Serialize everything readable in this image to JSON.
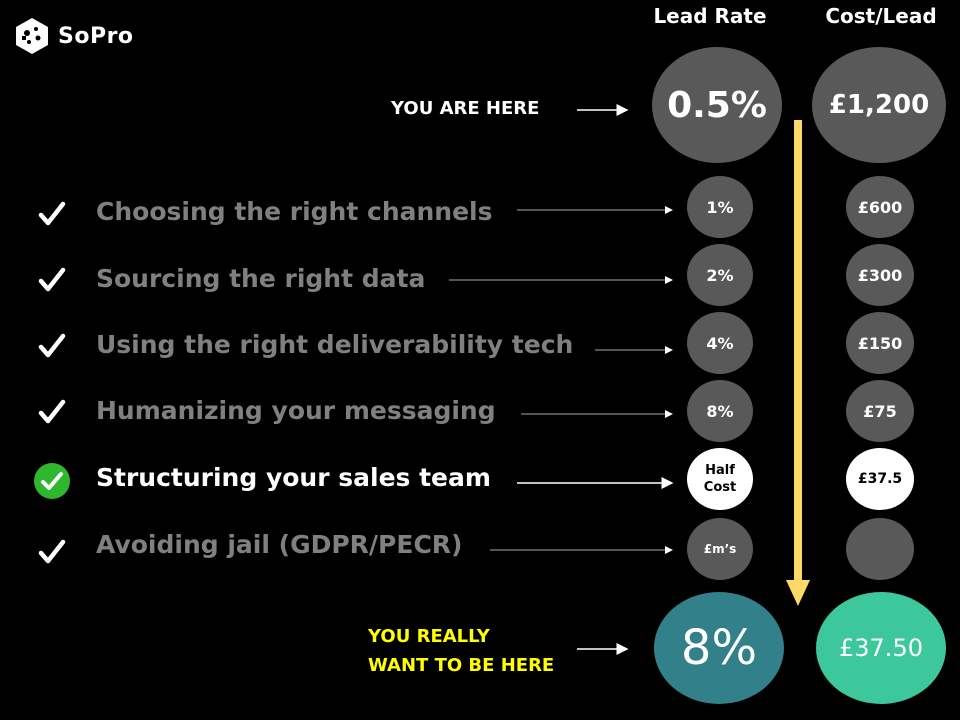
{
  "brand": {
    "name": "SoPro"
  },
  "headers": {
    "lead_rate": "Lead Rate",
    "cost_per_lead": "Cost/Lead"
  },
  "current": {
    "label": "YOU ARE HERE",
    "lead_rate": "0.5%",
    "cost": "£1,200"
  },
  "steps": [
    {
      "label": "Choosing the right channels",
      "rate": "1%",
      "cost": "£600"
    },
    {
      "label": "Sourcing the right data",
      "rate": "2%",
      "cost": "£300"
    },
    {
      "label": "Using the right deliverability tech",
      "rate": "4%",
      "cost": "£150"
    },
    {
      "label": "Humanizing your messaging",
      "rate": "8%",
      "cost": "£75"
    },
    {
      "label": "Structuring your sales team",
      "rate": "Half Cost",
      "cost": "£37.5"
    },
    {
      "label": "Avoiding jail (GDPR/PECR)",
      "rate": "£m’s",
      "cost": ""
    }
  ],
  "target": {
    "label_line1": "YOU REALLY",
    "label_line2": "WANT TO BE HERE",
    "lead_rate": "8%",
    "cost": "£37.50"
  },
  "colors": {
    "arrow": "#ffd966",
    "target_label": "#ffff00",
    "teal": "#31808a",
    "green": "#3cc89a",
    "check_green": "#2eb82e"
  }
}
